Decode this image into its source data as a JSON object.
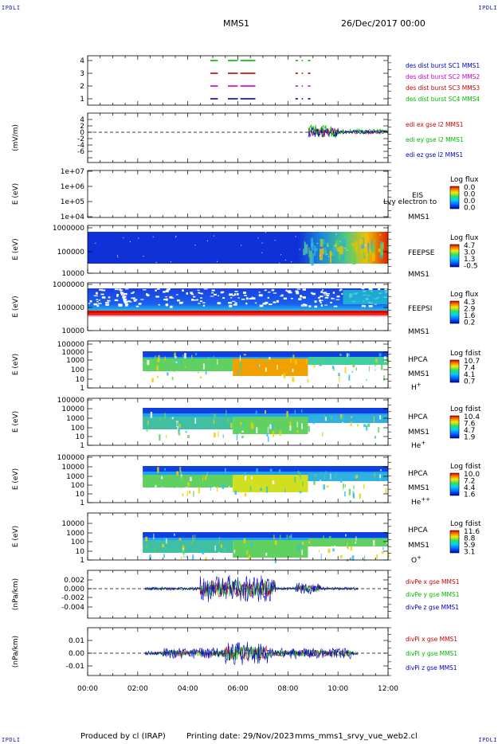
{
  "corner_label": "IPDLI",
  "header": {
    "spacecraft": "MMS1",
    "date": "26/Dec/2017 00:00"
  },
  "footer": {
    "produced_by": "Produced by cl (IRAP)",
    "printing_date": "Printing date: 29/Nov/2023",
    "file": "mms_mms1_srvy_vue_web2.cl"
  },
  "colors": {
    "mms1": "#0000cc",
    "mms2": "#cc00cc",
    "mms3": "#cc0000",
    "mms4": "#00bb00",
    "axis": "#000000"
  },
  "chart_data": [
    {
      "id": "burst",
      "type": "bar",
      "ytick_labels": [
        "4",
        "3",
        "2",
        "1"
      ],
      "legend": [
        {
          "name": "des dist burst SC1 MMS1",
          "color": "#0000cc"
        },
        {
          "name": "des dist burst SC2 MMS2",
          "color": "#cc00cc"
        },
        {
          "name": "des dist burst SC3 MMS3",
          "color": "#cc0000"
        },
        {
          "name": "des dist burst SC4 MMS4",
          "color": "#00bb00"
        }
      ],
      "intervals_hours": [
        [
          4.9,
          5.2
        ],
        [
          5.6,
          6.0
        ],
        [
          6.1,
          6.7
        ],
        [
          8.3,
          8.4
        ],
        [
          8.55,
          8.6
        ],
        [
          8.8,
          8.9
        ]
      ]
    },
    {
      "id": "edi",
      "type": "line",
      "ylabel": "(mV/m)",
      "ytick_labels": [
        "4",
        "2",
        "0",
        "-2",
        "-4",
        "-6"
      ],
      "ylim": [
        -6,
        5
      ],
      "legend": [
        {
          "name": "edi ex gse l2 MMS1",
          "color": "#cc0000"
        },
        {
          "name": "edi ey gse l2 MMS1",
          "color": "#00bb00"
        },
        {
          "name": "edi ez gse l2 MMS1",
          "color": "#0000cc"
        }
      ]
    },
    {
      "id": "eis",
      "type": "heatmap",
      "ylabel": "E (eV)",
      "ytick_labels": [
        "1e+07",
        "1e+06",
        "1e+05",
        "1e+04"
      ],
      "instrument": "EIS",
      "spacecraft": "MMS1",
      "overflow_text": "Lvy electron to",
      "scale_title": "Log flux",
      "scale_values": [
        "0.0",
        "0.0",
        "0.0",
        "0.0"
      ]
    },
    {
      "id": "feeps_e",
      "type": "heatmap",
      "ylabel": "E (eV)",
      "ytick_labels": [
        "1000000",
        "100000",
        "10000"
      ],
      "instrument": "FEEPSE",
      "spacecraft": "MMS1",
      "scale_title": "Log flux",
      "scale_values": [
        "4.7",
        "3.0",
        "1.3",
        "-0.5"
      ]
    },
    {
      "id": "feeps_i",
      "type": "heatmap",
      "ylabel": "E (eV)",
      "ytick_labels": [
        "1000000",
        "100000",
        "10000"
      ],
      "instrument": "FEEPSI",
      "spacecraft": "MMS1",
      "scale_title": "Log flux",
      "scale_values": [
        "4.3",
        "2.9",
        "1.6",
        "0.2"
      ]
    },
    {
      "id": "hpca_h",
      "type": "heatmap",
      "ylabel": "E (eV)",
      "ytick_labels": [
        "100000",
        "10000",
        "1000",
        "100",
        "10",
        "1"
      ],
      "instrument": "HPCA",
      "spacecraft": "MMS1",
      "species": "H",
      "charge": "+",
      "scale_title": "Log fdist",
      "scale_values": [
        "10.7",
        "7.4",
        "4.1",
        "0.7"
      ]
    },
    {
      "id": "hpca_he1",
      "type": "heatmap",
      "ylabel": "E (eV)",
      "ytick_labels": [
        "100000",
        "10000",
        "1000",
        "100",
        "10",
        "1"
      ],
      "instrument": "HPCA",
      "spacecraft": "MMS1",
      "species": "He",
      "charge": "+",
      "scale_title": "Log fdist",
      "scale_values": [
        "10.4",
        "7.6",
        "4.7",
        "1.9"
      ]
    },
    {
      "id": "hpca_he2",
      "type": "heatmap",
      "ylabel": "E (eV)",
      "ytick_labels": [
        "100000",
        "10000",
        "1000",
        "100",
        "10",
        "1"
      ],
      "instrument": "HPCA",
      "spacecraft": "MMS1",
      "species": "He",
      "charge": "++",
      "scale_title": "Log fdist",
      "scale_values": [
        "10.0",
        "7.2",
        "4.4",
        "1.6"
      ]
    },
    {
      "id": "hpca_o",
      "type": "heatmap",
      "ylabel": "E (eV)",
      "ytick_labels": [
        "10000",
        "1000",
        "100",
        "10",
        "1"
      ],
      "instrument": "HPCA",
      "spacecraft": "MMS1",
      "species": "O",
      "charge": "+",
      "scale_title": "Log fdist",
      "scale_values": [
        "11.6",
        "8.8",
        "5.9",
        "3.1"
      ]
    },
    {
      "id": "divpe",
      "type": "line",
      "ylabel": "(nPa/km)",
      "ytick_labels": [
        "0.002",
        "0.000",
        "-0.002",
        "-0.004"
      ],
      "ylim": [
        -0.0055,
        0.003
      ],
      "legend": [
        {
          "name": "divPe x gse MMS1",
          "color": "#cc0000"
        },
        {
          "name": "divPe y gse MMS1",
          "color": "#00bb00"
        },
        {
          "name": "divPe z gse MMS1",
          "color": "#0000cc"
        }
      ]
    },
    {
      "id": "divpi",
      "type": "line",
      "ylabel": "(nPa/km)",
      "ytick_labels": [
        "0.01",
        "0.00",
        "-0.01"
      ],
      "ylim": [
        -0.014,
        0.013
      ],
      "legend": [
        {
          "name": "divPi x gse MMS1",
          "color": "#cc0000"
        },
        {
          "name": "divPi y gse MMS1",
          "color": "#00bb00"
        },
        {
          "name": "divPi z gse MMS1",
          "color": "#0000cc"
        }
      ]
    }
  ],
  "x_axis": {
    "tick_labels": [
      "00:00",
      "02:00",
      "04:00",
      "06:00",
      "08:00",
      "10:00",
      "12:00"
    ],
    "xlim_hours": [
      0,
      12
    ]
  }
}
